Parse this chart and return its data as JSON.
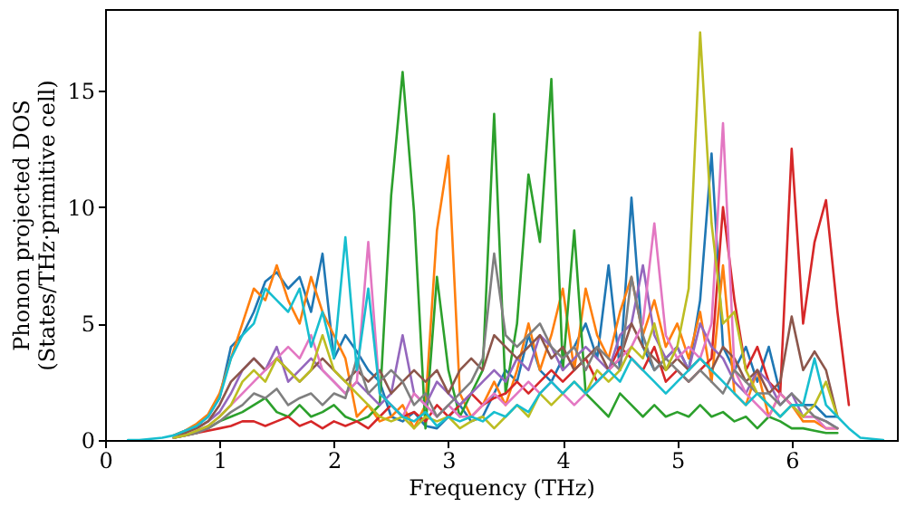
{
  "chart_data": {
    "type": "line",
    "xlabel": "Frequency (THz)",
    "ylabel": "Phonon projected DOS\n(States/THz·primitive cell)",
    "xlim": [
      0,
      6.92
    ],
    "ylim": [
      0,
      18.5
    ],
    "xticks": [
      0,
      1,
      2,
      3,
      4,
      5,
      6
    ],
    "yticks": [
      0,
      5,
      10,
      15
    ],
    "grid": false,
    "legend": false,
    "x": [
      0.2,
      0.3,
      0.4,
      0.5,
      0.6,
      0.7,
      0.8,
      0.9,
      1.0,
      1.1,
      1.2,
      1.3,
      1.4,
      1.5,
      1.6,
      1.7,
      1.8,
      1.9,
      2.0,
      2.1,
      2.2,
      2.3,
      2.4,
      2.5,
      2.6,
      2.7,
      2.8,
      2.9,
      3.0,
      3.1,
      3.2,
      3.3,
      3.4,
      3.5,
      3.6,
      3.7,
      3.8,
      3.9,
      4.0,
      4.1,
      4.2,
      4.3,
      4.4,
      4.5,
      4.6,
      4.7,
      4.8,
      4.9,
      5.0,
      5.1,
      5.2,
      5.3,
      5.4,
      5.5,
      5.6,
      5.7,
      5.8,
      5.9,
      6.0,
      6.1,
      6.2,
      6.3,
      6.4,
      6.5,
      6.6,
      6.7,
      6.8
    ],
    "series": [
      {
        "color": "#1f77b4",
        "values": [
          null,
          null,
          null,
          null,
          0.2,
          0.4,
          0.6,
          1.0,
          1.8,
          4.0,
          4.5,
          5.5,
          6.8,
          7.2,
          6.5,
          7.0,
          5.5,
          8.0,
          3.5,
          4.5,
          3.8,
          3.0,
          2.5,
          1.0,
          0.8,
          1.2,
          0.6,
          0.5,
          1.0,
          1.5,
          0.8,
          1.0,
          2.0,
          3.0,
          2.5,
          4.5,
          3.0,
          2.5,
          3.5,
          4.0,
          5.0,
          3.5,
          7.5,
          3.0,
          10.4,
          4.0,
          3.0,
          3.5,
          4.0,
          3.0,
          6.0,
          12.3,
          4.0,
          3.0,
          4.0,
          2.5,
          4.0,
          2.0,
          1.5,
          1.5,
          1.5,
          1.0,
          1.0,
          null,
          null,
          null,
          null
        ]
      },
      {
        "color": "#ff7f0e",
        "values": [
          null,
          null,
          null,
          null,
          0.2,
          0.4,
          0.7,
          1.1,
          2.0,
          3.5,
          5.0,
          6.5,
          6.0,
          7.5,
          6.0,
          5.0,
          7.0,
          5.5,
          4.5,
          3.5,
          1.0,
          1.5,
          0.8,
          1.0,
          1.5,
          0.5,
          1.5,
          9.0,
          12.2,
          2.0,
          1.0,
          1.5,
          2.5,
          1.5,
          3.0,
          5.0,
          3.0,
          4.5,
          6.5,
          3.0,
          6.5,
          4.5,
          3.5,
          5.5,
          7.0,
          4.5,
          6.0,
          4.0,
          5.0,
          3.5,
          5.5,
          2.5,
          7.5,
          2.0,
          1.5,
          3.0,
          1.0,
          2.0,
          1.5,
          0.8,
          0.8,
          0.5,
          0.5,
          null,
          null,
          null,
          null
        ]
      },
      {
        "color": "#2ca02c",
        "values": [
          null,
          null,
          null,
          null,
          0.1,
          0.2,
          0.3,
          0.5,
          0.8,
          1.0,
          1.2,
          1.5,
          1.8,
          1.2,
          1.0,
          1.5,
          1.0,
          1.2,
          1.5,
          1.0,
          0.8,
          1.0,
          1.5,
          10.5,
          15.8,
          9.8,
          0.5,
          7.0,
          3.0,
          1.0,
          2.0,
          3.0,
          14.0,
          2.0,
          5.0,
          11.4,
          8.5,
          15.5,
          3.0,
          9.0,
          2.0,
          1.5,
          1.0,
          2.0,
          1.5,
          1.0,
          1.5,
          1.0,
          1.2,
          1.0,
          1.5,
          1.0,
          1.2,
          0.8,
          1.0,
          0.5,
          1.0,
          0.8,
          0.5,
          0.5,
          0.4,
          0.3,
          0.3,
          null,
          null,
          null,
          null
        ]
      },
      {
        "color": "#d62728",
        "values": [
          null,
          null,
          null,
          null,
          0.1,
          0.2,
          0.3,
          0.4,
          0.5,
          0.6,
          0.8,
          0.8,
          0.6,
          0.8,
          1.0,
          0.6,
          0.8,
          0.5,
          0.8,
          0.6,
          0.8,
          0.5,
          1.0,
          1.5,
          1.0,
          1.2,
          0.8,
          1.5,
          1.0,
          1.5,
          2.0,
          1.5,
          1.8,
          2.0,
          2.5,
          2.0,
          2.5,
          3.0,
          2.5,
          3.0,
          3.5,
          2.5,
          3.0,
          4.0,
          3.5,
          3.0,
          4.0,
          2.5,
          3.0,
          2.5,
          3.0,
          3.5,
          10.0,
          6.0,
          3.0,
          4.0,
          2.5,
          2.0,
          12.5,
          5.0,
          8.5,
          10.3,
          5.5,
          1.5,
          null,
          null,
          null
        ]
      },
      {
        "color": "#9467bd",
        "values": [
          null,
          null,
          null,
          null,
          0.1,
          0.3,
          0.5,
          0.8,
          1.2,
          2.0,
          3.0,
          3.5,
          3.0,
          4.0,
          2.5,
          3.0,
          3.5,
          3.0,
          2.5,
          2.0,
          2.5,
          2.0,
          1.5,
          2.0,
          4.5,
          2.0,
          1.5,
          2.5,
          2.0,
          1.5,
          2.0,
          2.5,
          3.0,
          2.5,
          3.5,
          3.0,
          4.5,
          4.0,
          3.0,
          3.5,
          4.0,
          3.5,
          3.0,
          4.5,
          5.0,
          7.5,
          4.5,
          3.5,
          4.0,
          3.0,
          5.0,
          4.0,
          3.5,
          2.5,
          2.0,
          3.0,
          2.5,
          1.5,
          2.0,
          1.0,
          1.0,
          0.8,
          0.5,
          null,
          null,
          null,
          null
        ]
      },
      {
        "color": "#8c564b",
        "values": [
          null,
          null,
          null,
          null,
          0.1,
          0.3,
          0.5,
          0.8,
          1.5,
          2.5,
          3.0,
          3.5,
          3.0,
          3.5,
          3.0,
          2.5,
          3.0,
          3.5,
          3.0,
          2.5,
          3.0,
          2.5,
          3.0,
          2.0,
          2.5,
          3.0,
          2.5,
          3.0,
          2.0,
          3.0,
          3.5,
          3.0,
          4.5,
          4.0,
          3.5,
          4.0,
          4.5,
          3.5,
          4.0,
          3.0,
          3.5,
          4.0,
          3.0,
          3.5,
          5.0,
          4.0,
          3.5,
          3.0,
          3.5,
          3.0,
          3.5,
          3.0,
          4.0,
          3.5,
          2.5,
          3.0,
          2.0,
          2.5,
          5.3,
          3.0,
          3.8,
          3.0,
          1.0,
          null,
          null,
          null,
          null
        ]
      },
      {
        "color": "#e377c2",
        "values": [
          null,
          null,
          null,
          null,
          0.1,
          0.2,
          0.4,
          0.6,
          1.0,
          1.5,
          2.0,
          2.5,
          3.0,
          3.5,
          4.0,
          3.5,
          4.5,
          3.0,
          2.5,
          2.0,
          2.5,
          8.5,
          2.0,
          1.5,
          1.0,
          2.0,
          1.5,
          1.0,
          1.5,
          1.0,
          1.0,
          1.5,
          2.0,
          1.5,
          2.0,
          2.5,
          2.0,
          2.5,
          2.0,
          1.5,
          2.0,
          2.5,
          3.0,
          3.5,
          4.0,
          5.0,
          9.3,
          4.5,
          3.5,
          4.0,
          3.5,
          5.0,
          13.6,
          3.0,
          2.0,
          1.5,
          1.0,
          2.0,
          1.5,
          1.0,
          1.0,
          0.5,
          0.5,
          null,
          null,
          null,
          null
        ]
      },
      {
        "color": "#7f7f7f",
        "values": [
          null,
          null,
          null,
          null,
          0.1,
          0.2,
          0.3,
          0.5,
          0.8,
          1.2,
          1.5,
          2.0,
          1.8,
          2.2,
          1.5,
          1.8,
          2.0,
          1.5,
          2.0,
          1.8,
          3.5,
          2.0,
          2.5,
          3.0,
          2.5,
          1.5,
          2.0,
          1.0,
          1.5,
          2.0,
          2.5,
          3.5,
          8.0,
          4.5,
          4.0,
          4.5,
          5.0,
          4.0,
          3.5,
          4.0,
          3.0,
          4.0,
          3.5,
          3.0,
          7.0,
          4.5,
          3.0,
          3.5,
          3.0,
          2.5,
          3.0,
          2.5,
          2.0,
          3.0,
          2.5,
          2.0,
          2.0,
          1.5,
          2.0,
          1.5,
          1.0,
          0.8,
          0.5,
          null,
          null,
          null,
          null
        ]
      },
      {
        "color": "#bcbd22",
        "values": [
          null,
          null,
          null,
          null,
          0.1,
          0.2,
          0.4,
          0.6,
          1.0,
          1.5,
          2.5,
          3.0,
          2.5,
          3.5,
          3.0,
          2.5,
          3.0,
          4.5,
          3.0,
          2.5,
          2.0,
          1.5,
          1.0,
          0.8,
          1.0,
          0.5,
          1.0,
          0.8,
          1.0,
          0.5,
          0.8,
          1.0,
          0.5,
          1.0,
          1.5,
          1.0,
          2.0,
          1.5,
          2.0,
          2.5,
          2.0,
          3.0,
          2.5,
          3.0,
          4.0,
          3.5,
          5.0,
          3.0,
          4.0,
          6.5,
          17.5,
          9.3,
          5.0,
          5.5,
          3.0,
          2.0,
          1.5,
          1.0,
          1.5,
          1.0,
          1.5,
          2.5,
          1.0,
          null,
          null,
          null,
          null
        ]
      },
      {
        "color": "#17becf",
        "values": [
          0,
          0,
          0.05,
          0.1,
          0.2,
          0.4,
          0.6,
          1.0,
          1.8,
          3.5,
          4.5,
          5.0,
          6.5,
          6.0,
          5.5,
          6.5,
          4.0,
          5.5,
          3.5,
          8.7,
          3.0,
          6.5,
          2.0,
          1.5,
          1.0,
          0.8,
          1.2,
          0.6,
          1.0,
          0.8,
          1.0,
          0.8,
          1.2,
          1.0,
          1.5,
          1.2,
          2.0,
          2.5,
          2.0,
          2.5,
          2.0,
          2.5,
          3.0,
          2.5,
          3.5,
          3.0,
          2.5,
          2.0,
          2.5,
          3.0,
          3.5,
          3.0,
          2.5,
          2.0,
          1.5,
          2.0,
          1.5,
          1.0,
          1.5,
          1.5,
          3.5,
          1.5,
          1.0,
          0.5,
          0.1,
          0.05,
          0
        ]
      }
    ]
  }
}
